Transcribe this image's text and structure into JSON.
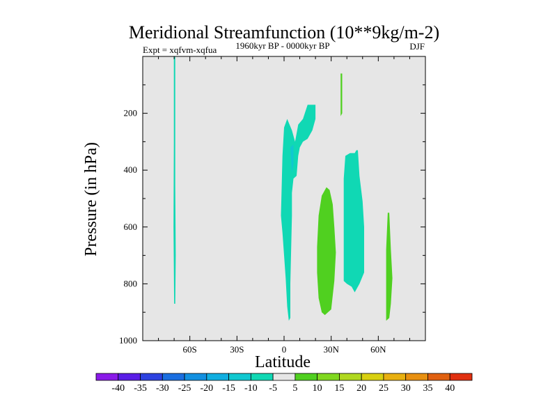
{
  "chart_data": {
    "type": "contour",
    "title": "Meridional Streamfunction (10**9kg/m-2)",
    "subtitle": "1960kyr BP - 0000kyr BP",
    "left_label": "Expt = xqfvm-xqfua",
    "right_label": "DJF",
    "xlabel": "Latitude",
    "ylabel": "Pressure (in hPa)",
    "xlim": [
      -90,
      90
    ],
    "ylim": [
      1000,
      0
    ],
    "x_ticks": [
      {
        "value": -60,
        "label": "60S"
      },
      {
        "value": -30,
        "label": "30S"
      },
      {
        "value": 0,
        "label": "0"
      },
      {
        "value": 30,
        "label": "30N"
      },
      {
        "value": 60,
        "label": "60N"
      }
    ],
    "y_ticks": [
      {
        "value": 200,
        "label": "200"
      },
      {
        "value": 400,
        "label": "400"
      },
      {
        "value": 600,
        "label": "600"
      },
      {
        "value": 800,
        "label": "800"
      },
      {
        "value": 1000,
        "label": "1000"
      }
    ],
    "background_color": "#e6e6e6",
    "colorbar": {
      "levels": [
        "-40",
        "-35",
        "-30",
        "-25",
        "-20",
        "-15",
        "-10",
        "-5",
        "5",
        "10",
        "15",
        "20",
        "25",
        "30",
        "35",
        "40"
      ],
      "colors": [
        "#8a1ae8",
        "#5a1ee6",
        "#2d42e0",
        "#1a6ee0",
        "#1290e0",
        "#10aee0",
        "#10c8d0",
        "#10d8b4",
        "#e6e6e6",
        "#50d020",
        "#80d820",
        "#b0d820",
        "#d8d010",
        "#e8b010",
        "#e89010",
        "#e06010",
        "#e03010"
      ]
    },
    "regions": [
      {
        "label": "-10 to -5",
        "color": "#10d8b4",
        "points": [
          [
            -70.2,
            0
          ],
          [
            -69.3,
            0
          ],
          [
            -69.3,
            450
          ],
          [
            -69.0,
            700
          ],
          [
            -69.3,
            870
          ],
          [
            -70.0,
            870
          ],
          [
            -70.4,
            600
          ],
          [
            -70.2,
            300
          ]
        ]
      },
      {
        "label": "-10 to -5",
        "color": "#10d8b4",
        "points": [
          [
            -2,
            560
          ],
          [
            -1,
            350
          ],
          [
            0,
            250
          ],
          [
            2,
            220
          ],
          [
            5,
            260
          ],
          [
            7,
            300
          ],
          [
            9,
            240
          ],
          [
            12,
            220
          ],
          [
            15,
            170
          ],
          [
            20,
            170
          ],
          [
            20,
            220
          ],
          [
            18,
            260
          ],
          [
            15,
            290
          ],
          [
            12,
            300
          ],
          [
            10,
            320
          ],
          [
            9,
            350
          ],
          [
            8,
            420
          ],
          [
            6,
            430
          ],
          [
            5,
            480
          ],
          [
            5,
            560
          ],
          [
            4,
            800
          ],
          [
            4,
            920
          ],
          [
            3,
            930
          ],
          [
            2,
            880
          ],
          [
            1,
            780
          ],
          [
            0,
            700
          ],
          [
            -1,
            620
          ]
        ]
      },
      {
        "label": "-15 to -10",
        "color": "#10c8d0",
        "points": [
          [
            4,
            320
          ],
          [
            6,
            310
          ],
          [
            6,
            380
          ],
          [
            5,
            410
          ]
        ]
      },
      {
        "label": "-10 to -5",
        "color": "#10d8b4",
        "points": [
          [
            38,
            430
          ],
          [
            39,
            350
          ],
          [
            42,
            340
          ],
          [
            45,
            340
          ],
          [
            46,
            330
          ],
          [
            47,
            330
          ],
          [
            48,
            420
          ],
          [
            50,
            510
          ],
          [
            51,
            600
          ],
          [
            51,
            760
          ],
          [
            48,
            800
          ],
          [
            45,
            830
          ],
          [
            43,
            810
          ],
          [
            40,
            800
          ],
          [
            38,
            790
          ],
          [
            38,
            600
          ]
        ]
      },
      {
        "label": "5 to 10",
        "color": "#50d020",
        "points": [
          [
            21,
            670
          ],
          [
            22,
            560
          ],
          [
            24,
            490
          ],
          [
            27,
            460
          ],
          [
            29,
            470
          ],
          [
            31,
            520
          ],
          [
            32,
            600
          ],
          [
            33,
            690
          ],
          [
            32,
            790
          ],
          [
            30,
            890
          ],
          [
            26,
            910
          ],
          [
            24,
            900
          ],
          [
            22,
            850
          ],
          [
            21,
            760
          ]
        ]
      },
      {
        "label": "5 to 10",
        "color": "#50d020",
        "points": [
          [
            66,
            550
          ],
          [
            67,
            550
          ],
          [
            68,
            680
          ],
          [
            69,
            780
          ],
          [
            68,
            870
          ],
          [
            67,
            920
          ],
          [
            65,
            930
          ],
          [
            65,
            820
          ],
          [
            65,
            680
          ]
        ]
      },
      {
        "label": "5 to 10",
        "color": "#50d020",
        "points": [
          [
            36,
            60
          ],
          [
            37,
            60
          ],
          [
            37,
            200
          ],
          [
            36,
            210
          ]
        ]
      }
    ]
  }
}
